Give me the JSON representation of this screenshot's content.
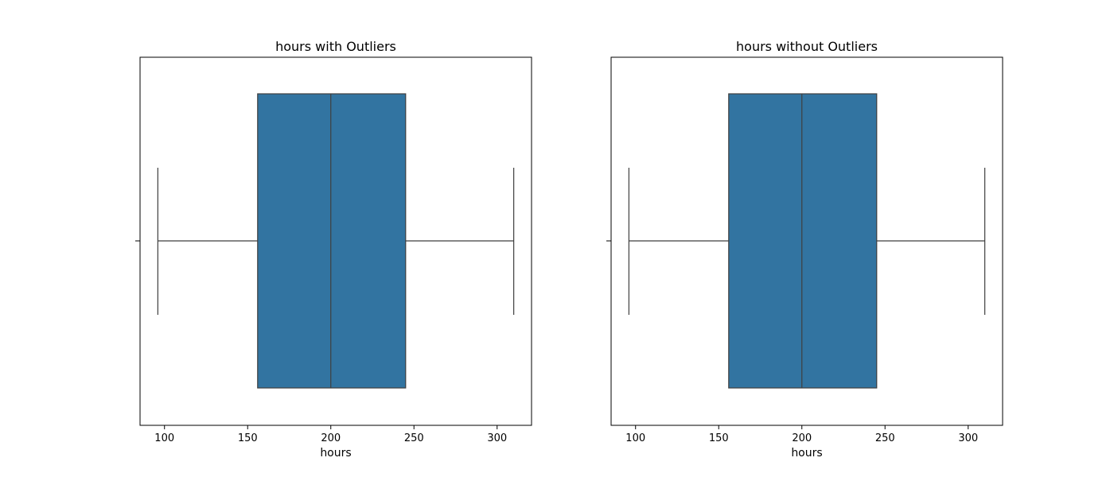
{
  "chart_data": [
    {
      "type": "box",
      "title": "hours with Outliers",
      "xlabel": "hours",
      "ylabel": "",
      "xlim": [
        85.3,
        320.7
      ],
      "xticks": [
        100,
        150,
        200,
        250,
        300
      ],
      "tick_labels": [
        "100",
        "150",
        "200",
        "250",
        "300"
      ],
      "box": {
        "whisker_low": 96,
        "q1": 156,
        "median": 200,
        "q3": 245,
        "whisker_high": 310
      },
      "outliers": [],
      "grid": false,
      "color": "#3274a1"
    },
    {
      "type": "box",
      "title": "hours without Outliers",
      "xlabel": "hours",
      "ylabel": "",
      "xlim": [
        85.3,
        320.7
      ],
      "xticks": [
        100,
        150,
        200,
        250,
        300
      ],
      "tick_labels": [
        "100",
        "150",
        "200",
        "250",
        "300"
      ],
      "box": {
        "whisker_low": 96,
        "q1": 156,
        "median": 200,
        "q3": 245,
        "whisker_high": 310
      },
      "outliers": [],
      "grid": false,
      "color": "#3274a1"
    }
  ]
}
